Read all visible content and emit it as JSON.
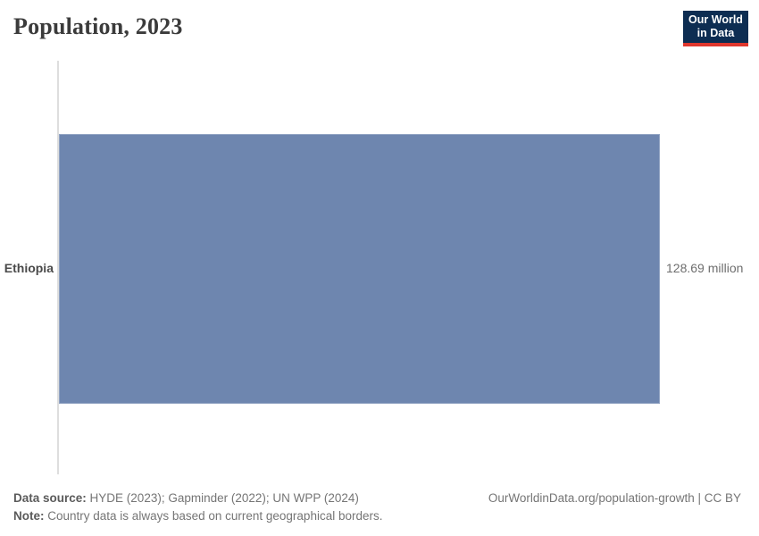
{
  "header": {
    "title": "Population, 2023",
    "logo": {
      "line1": "Our World",
      "line2": "in Data"
    }
  },
  "chart_data": {
    "type": "bar",
    "orientation": "horizontal",
    "title": "Population, 2023",
    "categories": [
      "Ethiopia"
    ],
    "values": [
      128.69
    ],
    "unit": "million",
    "value_labels": [
      "128.69 million"
    ],
    "xlabel": "",
    "ylabel": "",
    "legend": false,
    "grid": false,
    "bar_color": "#6e86af"
  },
  "footer": {
    "datasource_label": "Data source:",
    "datasource_text": "HYDE (2023); Gapminder (2022); UN WPP (2024)",
    "note_label": "Note:",
    "note_text": "Country data is always based on current geographical borders.",
    "attribution": "OurWorldinData.org/population-growth | CC BY"
  },
  "colors": {
    "bar": "#6e86af",
    "axis": "#dedede",
    "logo_bg": "#0d2d52",
    "logo_accent": "#e0372d",
    "title_text": "#3b3b3b",
    "muted_text": "#757575"
  }
}
